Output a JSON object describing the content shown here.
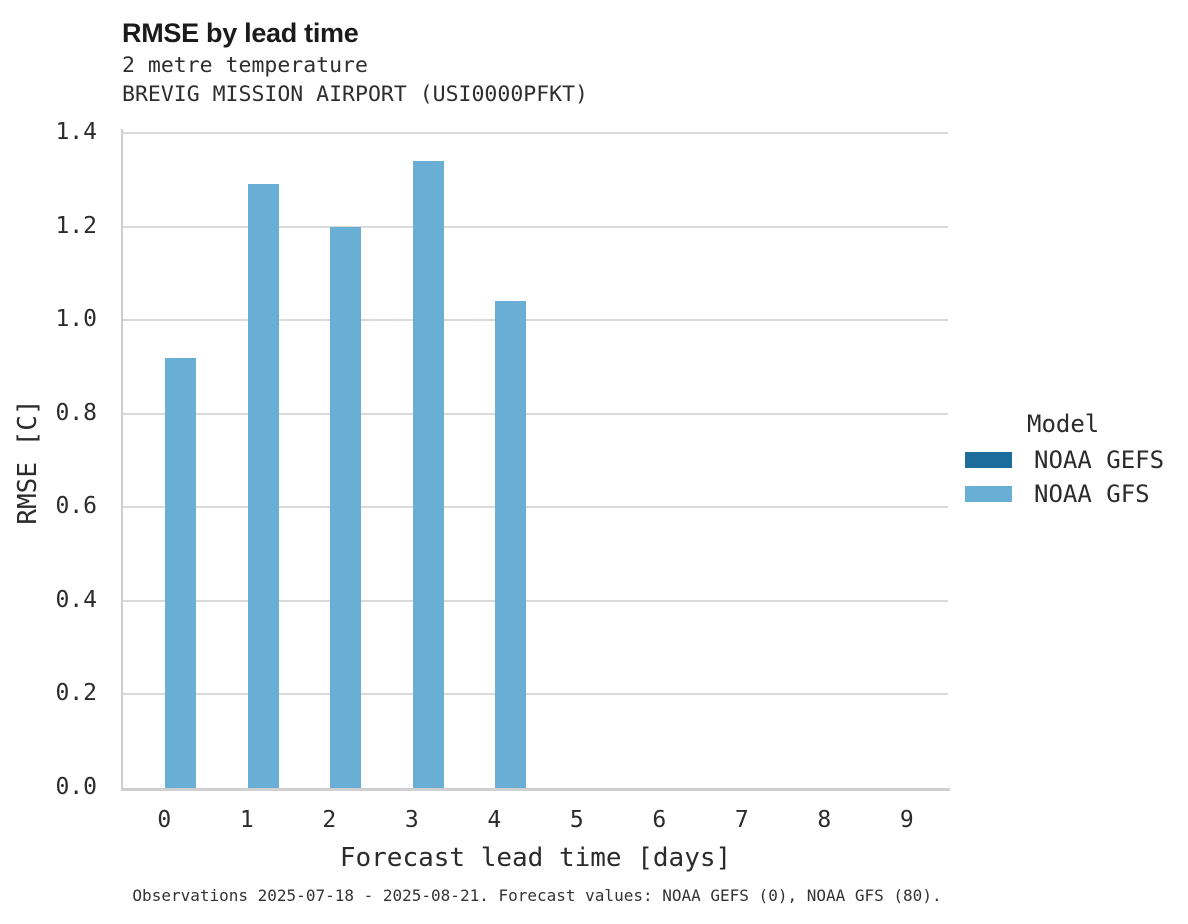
{
  "chart_data": {
    "type": "bar",
    "title": "RMSE by lead time",
    "subtitle": [
      "2 metre temperature",
      "BREVIG MISSION AIRPORT (USI0000PFKT)"
    ],
    "xlabel": "Forecast lead time [days]",
    "ylabel": "RMSE [C]",
    "categories": [
      "0",
      "1",
      "2",
      "3",
      "4",
      "5",
      "6",
      "7",
      "8",
      "9"
    ],
    "ylim": [
      0.0,
      1.4
    ],
    "yticks": [
      0.0,
      0.2,
      0.4,
      0.6,
      0.8,
      1.0,
      1.2,
      1.4
    ],
    "grid": true,
    "legend": {
      "title": "Model",
      "position": "right"
    },
    "series": [
      {
        "name": "NOAA GEFS",
        "color": "#1c6d9c",
        "values": [
          null,
          null,
          null,
          null,
          null,
          null,
          null,
          null,
          null,
          null
        ]
      },
      {
        "name": "NOAA GFS",
        "color": "#69aed5",
        "values": [
          0.92,
          1.29,
          1.2,
          1.34,
          1.04,
          null,
          null,
          null,
          null,
          null
        ]
      }
    ],
    "footnote": "Observations 2025-07-18 - 2025-08-21. Forecast values: NOAA GEFS (0), NOAA GFS (80)."
  },
  "colors": {
    "gridline": "#d9d9d9",
    "axis_line": "#cfcfcf",
    "noaa_gefs": "#1c6d9c",
    "noaa_gfs": "#69aed5"
  }
}
